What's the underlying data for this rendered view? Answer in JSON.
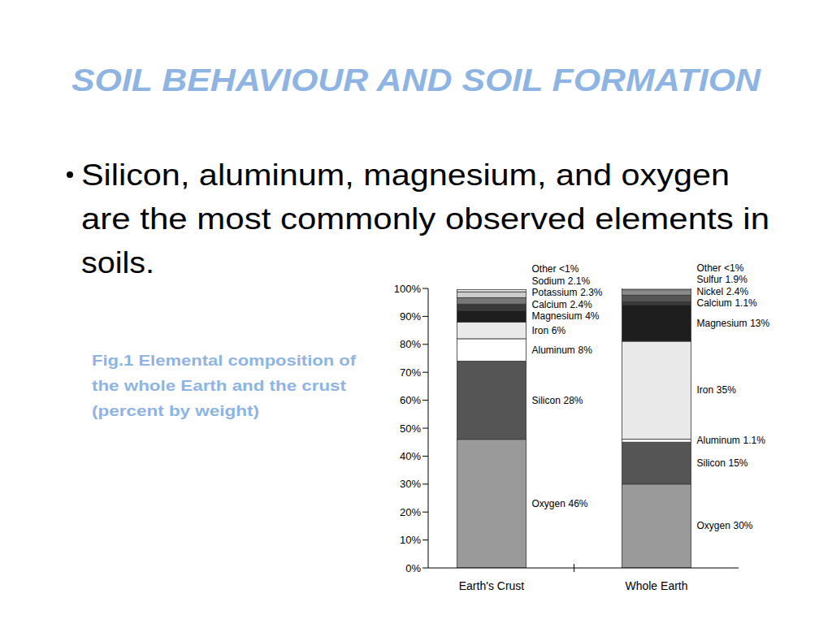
{
  "header": {
    "title": "SOIL BEHAVIOUR AND SOIL FORMATION"
  },
  "bullet": {
    "lines": [
      "Silicon, aluminum, magnesium, and oxygen",
      "are the most commonly observed elements in",
      "soils."
    ]
  },
  "caption": {
    "lines": [
      "Fig.1 Elemental composition of",
      "the whole Earth and the crust",
      "(percent by weight)"
    ]
  },
  "chart_data": {
    "type": "bar",
    "stacked": true,
    "data_labels": true,
    "grid": false,
    "categories": [
      "Earth's Crust",
      "Whole Earth"
    ],
    "ylim": [
      0,
      100
    ],
    "yticks": [
      {
        "value": 0,
        "label": "0%"
      },
      {
        "value": 10,
        "label": "10%"
      },
      {
        "value": 20,
        "label": "20%"
      },
      {
        "value": 30,
        "label": "30%"
      },
      {
        "value": 40,
        "label": "40%"
      },
      {
        "value": 50,
        "label": "50%"
      },
      {
        "value": 60,
        "label": "60%"
      },
      {
        "value": 70,
        "label": "70%"
      },
      {
        "value": 80,
        "label": "80%"
      },
      {
        "value": 90,
        "label": "90%"
      },
      {
        "value": 100,
        "label": "100%"
      }
    ],
    "series": [
      {
        "name": "Oxygen",
        "color": "#9a9a9a",
        "values": [
          46,
          30
        ],
        "value_labels": [
          "46%",
          "30%"
        ]
      },
      {
        "name": "Silicon",
        "color": "#555555",
        "values": [
          28,
          15
        ],
        "value_labels": [
          "28%",
          "15%"
        ]
      },
      {
        "name": "Aluminum",
        "color": "#ffffff",
        "values": [
          8,
          1.1
        ],
        "value_labels": [
          "8%",
          "1.1%"
        ]
      },
      {
        "name": "Iron",
        "color": "#e9e9e9",
        "values": [
          6,
          35
        ],
        "value_labels": [
          "6%",
          "35%"
        ]
      },
      {
        "name": "Magnesium",
        "color": "#1e1e1e",
        "values": [
          4,
          13
        ],
        "value_labels": [
          "4%",
          "13%"
        ]
      },
      {
        "name": "Calcium",
        "color": "#3a3a3a",
        "values": [
          2.4,
          1.1
        ],
        "value_labels": [
          "2.4%",
          "1.1%"
        ]
      },
      {
        "name": "Potassium",
        "color": "#777777",
        "values": [
          2.3,
          null
        ],
        "value_labels": [
          "2.3%",
          null
        ]
      },
      {
        "name": "Sodium",
        "color": "#cccccc",
        "values": [
          2.1,
          null
        ],
        "value_labels": [
          "2.1%",
          null
        ]
      },
      {
        "name": "Nickel",
        "color": "#555555",
        "values": [
          null,
          2.4
        ],
        "value_labels": [
          null,
          "2.4%"
        ]
      },
      {
        "name": "Sulfur",
        "color": "#8a8a8a",
        "values": [
          null,
          1.9
        ],
        "value_labels": [
          null,
          "1.9%"
        ]
      },
      {
        "name": "Other",
        "color": "#eeeeee",
        "values": [
          0.8,
          0.5
        ],
        "value_labels": [
          "<1%",
          "<1%"
        ]
      }
    ]
  }
}
